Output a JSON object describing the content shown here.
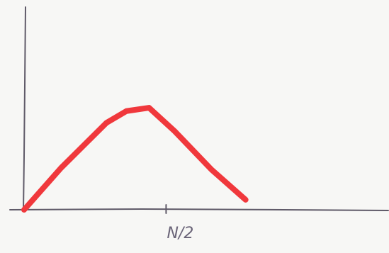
{
  "chart_data": {
    "type": "line",
    "title": "",
    "xlabel": "",
    "ylabel": "",
    "x_ticks": [
      {
        "x": 0.5,
        "label": "N/2"
      }
    ],
    "xlim": [
      0,
      1.2
    ],
    "ylim": [
      0,
      1.0
    ],
    "grid": false,
    "legend": "none",
    "series": [
      {
        "color": "#f0383c",
        "points": [
          [
            0.0,
            0.0
          ],
          [
            0.13,
            0.25
          ],
          [
            0.29,
            0.52
          ],
          [
            0.36,
            0.59
          ],
          [
            0.44,
            0.61
          ],
          [
            0.53,
            0.47
          ],
          [
            0.66,
            0.24
          ],
          [
            0.78,
            0.06
          ]
        ]
      }
    ],
    "axis_color": "#5f5a68"
  }
}
